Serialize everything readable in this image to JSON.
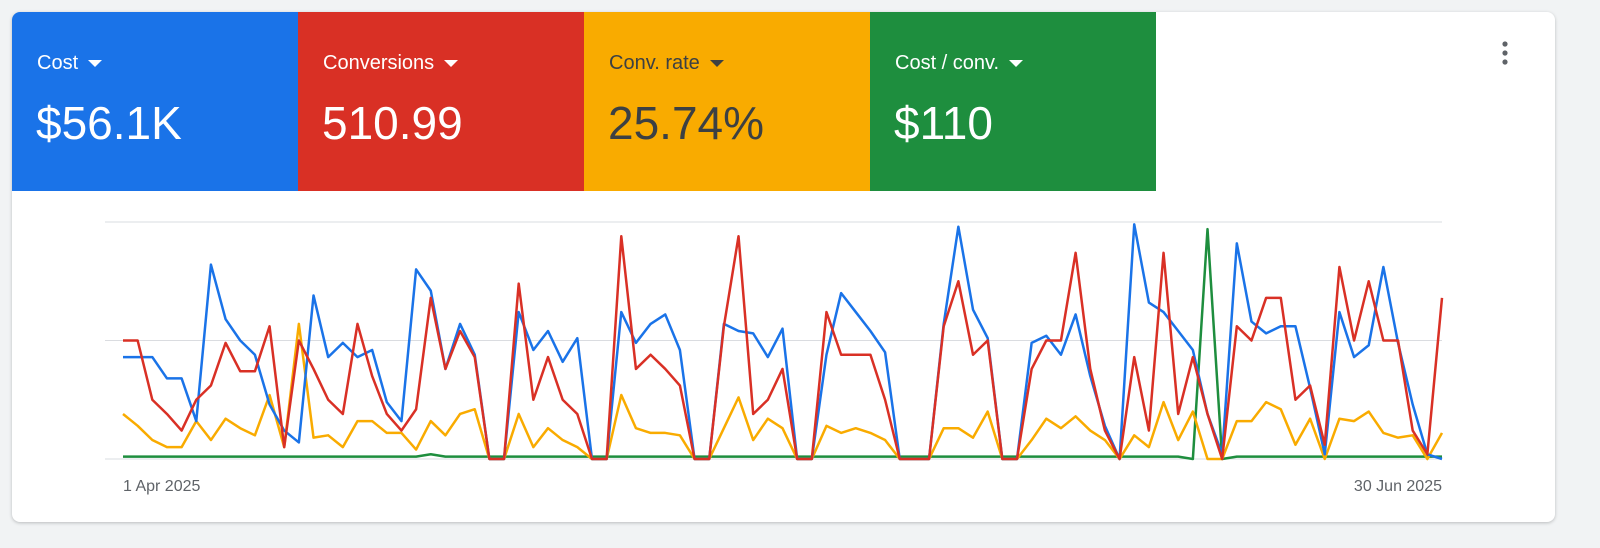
{
  "scorecards": [
    {
      "label": "Cost",
      "value": "$56.1K",
      "color": "#1a73e8",
      "text_color": "#ffffff"
    },
    {
      "label": "Conversions",
      "value": "510.99",
      "color": "#d93025",
      "text_color": "#ffffff"
    },
    {
      "label": "Conv. rate",
      "value": "25.74%",
      "color": "#f9ab00",
      "text_color": "#3c4043"
    },
    {
      "label": "Cost / conv.",
      "value": "$110",
      "color": "#1e8e3e",
      "text_color": "#ffffff"
    }
  ],
  "chart_data": {
    "type": "line",
    "categories": [
      "1 Apr 2025",
      null,
      null,
      null,
      null,
      null,
      null,
      null,
      null,
      null,
      null,
      null,
      null,
      null,
      null,
      null,
      null,
      null,
      null,
      null,
      null,
      null,
      null,
      null,
      null,
      null,
      null,
      null,
      null,
      null,
      null,
      null,
      null,
      null,
      null,
      null,
      null,
      null,
      null,
      null,
      null,
      null,
      null,
      null,
      null,
      null,
      null,
      null,
      null,
      null,
      null,
      null,
      null,
      null,
      null,
      null,
      null,
      null,
      null,
      null,
      null,
      null,
      null,
      null,
      null,
      null,
      null,
      null,
      null,
      null,
      null,
      null,
      null,
      null,
      null,
      null,
      null,
      null,
      null,
      null,
      null,
      null,
      null,
      null,
      null,
      null,
      null,
      null,
      null,
      null,
      "30 Jun 2025"
    ],
    "ylim": [
      0,
      100
    ],
    "gridlines": [
      0,
      50,
      100
    ],
    "series": [
      {
        "color": "#1e8e3e",
        "values": [
          1,
          1,
          1,
          1,
          1,
          1,
          1,
          1,
          1,
          1,
          1,
          1,
          1,
          1,
          1,
          1,
          1,
          1,
          1,
          1,
          1,
          2,
          1,
          1,
          1,
          1,
          1,
          1,
          1,
          1,
          1,
          1,
          1,
          1,
          1,
          1,
          1,
          1,
          1,
          1,
          1,
          1,
          1,
          1,
          1,
          1,
          1,
          1,
          1,
          1,
          1,
          1,
          1,
          1,
          1,
          1,
          1,
          1,
          1,
          1,
          1,
          1,
          1,
          1,
          1,
          1,
          1,
          1,
          1,
          1,
          1,
          1,
          1,
          0,
          97,
          0,
          1,
          1,
          1,
          1,
          1,
          1,
          1,
          1,
          1,
          1,
          1,
          1,
          1,
          1,
          1
        ]
      },
      {
        "color": "#f9ab00",
        "values": [
          19,
          14,
          8,
          5,
          5,
          16,
          8,
          17,
          13,
          10,
          27,
          5,
          57,
          9,
          10,
          5,
          16,
          16,
          11,
          11,
          4,
          16,
          10,
          19,
          21,
          0,
          0,
          19,
          5,
          13,
          8,
          5,
          0,
          0,
          27,
          13,
          11,
          11,
          10,
          0,
          0,
          13,
          26,
          8,
          17,
          13,
          0,
          0,
          14,
          11,
          13,
          11,
          8,
          0,
          0,
          0,
          13,
          13,
          9,
          20,
          0,
          0,
          8,
          17,
          13,
          18,
          12,
          8,
          0,
          10,
          5,
          24,
          8,
          20,
          0,
          0,
          16,
          16,
          24,
          21,
          6,
          17,
          0,
          17,
          16,
          20,
          11,
          9,
          10,
          0,
          11
        ]
      },
      {
        "color": "#1a73e8",
        "values": [
          43,
          43,
          43,
          34,
          34,
          16,
          82,
          59,
          50,
          44,
          23,
          12,
          7,
          69,
          43,
          49,
          43,
          46,
          24,
          16,
          80,
          71,
          38,
          57,
          44,
          0,
          0,
          62,
          46,
          54,
          41,
          51,
          0,
          0,
          62,
          49,
          57,
          61,
          46,
          0,
          0,
          57,
          54,
          53,
          43,
          55,
          0,
          0,
          44,
          70,
          62,
          54,
          45,
          0,
          0,
          0,
          57,
          98,
          63,
          51,
          0,
          0,
          49,
          52,
          44,
          61,
          35,
          14,
          0,
          99,
          66,
          62,
          54,
          46,
          19,
          2,
          91,
          58,
          53,
          56,
          56,
          30,
          2,
          62,
          43,
          48,
          81,
          49,
          23,
          2,
          0
        ]
      },
      {
        "color": "#d93025",
        "values": [
          50,
          50,
          25,
          19,
          12,
          25,
          31,
          49,
          37,
          37,
          56,
          5,
          50,
          38,
          25,
          19,
          57,
          35,
          19,
          12,
          21,
          68,
          38,
          54,
          43,
          0,
          0,
          74,
          25,
          43,
          25,
          19,
          0,
          0,
          94,
          38,
          44,
          38,
          31,
          0,
          0,
          56,
          94,
          19,
          25,
          38,
          0,
          0,
          62,
          44,
          44,
          44,
          25,
          0,
          0,
          0,
          56,
          75,
          44,
          50,
          0,
          0,
          38,
          50,
          50,
          87,
          38,
          12,
          0,
          43,
          12,
          87,
          19,
          43,
          19,
          0,
          56,
          50,
          68,
          68,
          25,
          31,
          6,
          81,
          50,
          75,
          50,
          50,
          12,
          2,
          68
        ]
      }
    ]
  }
}
